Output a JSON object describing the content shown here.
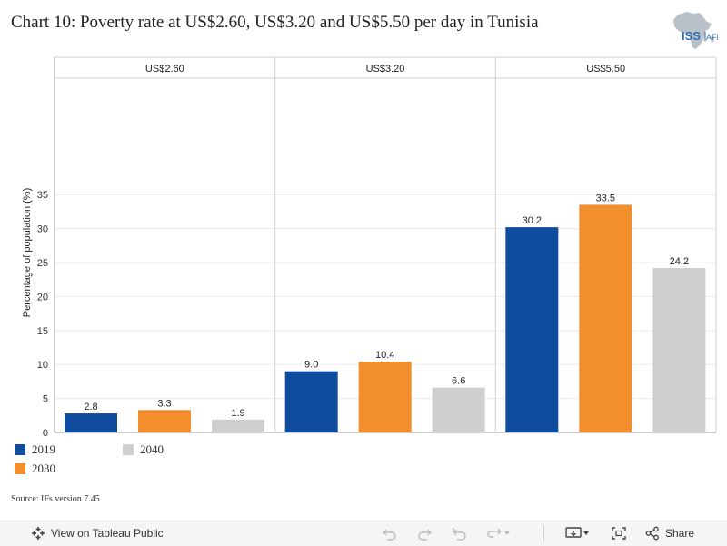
{
  "title": "Chart 10: Poverty rate at US$2.60, US$3.20 and US$5.50 per day in Tunisia",
  "logo": {
    "text": "ISS",
    "suffix": "AFI",
    "icon": "africa-map-icon"
  },
  "chart_data": {
    "type": "bar",
    "ylabel": "Percentage of population (%)",
    "xlabel": "",
    "ylim": [
      0,
      35
    ],
    "yticks": [
      0,
      5,
      10,
      15,
      20,
      25,
      30,
      35
    ],
    "grid": true,
    "legend_position": "bottom-left",
    "categories": [
      "US$2.60",
      "US$3.20",
      "US$5.50"
    ],
    "series": [
      {
        "name": "2019",
        "color": "#0f4c9e",
        "values": [
          2.8,
          9.0,
          30.2
        ],
        "labels": [
          "2.8",
          "9.0",
          "30.2"
        ]
      },
      {
        "name": "2030",
        "color": "#f28e2b",
        "values": [
          3.3,
          10.4,
          33.5
        ],
        "labels": [
          "3.3",
          "10.4",
          "33.5"
        ]
      },
      {
        "name": "2040",
        "color": "#cfcfd1",
        "values": [
          1.9,
          6.6,
          24.2
        ],
        "labels": [
          "1.9",
          "6.6",
          "24.2"
        ]
      }
    ]
  },
  "source": "Source: IFs version 7.45",
  "toolbar": {
    "view_label": "View on Tableau Public",
    "share_label": "Share",
    "icons": [
      "tableau-logo-icon",
      "undo-icon",
      "redo-icon",
      "revert-icon",
      "refresh-icon",
      "download-icon",
      "fullscreen-icon",
      "share-icon"
    ]
  }
}
